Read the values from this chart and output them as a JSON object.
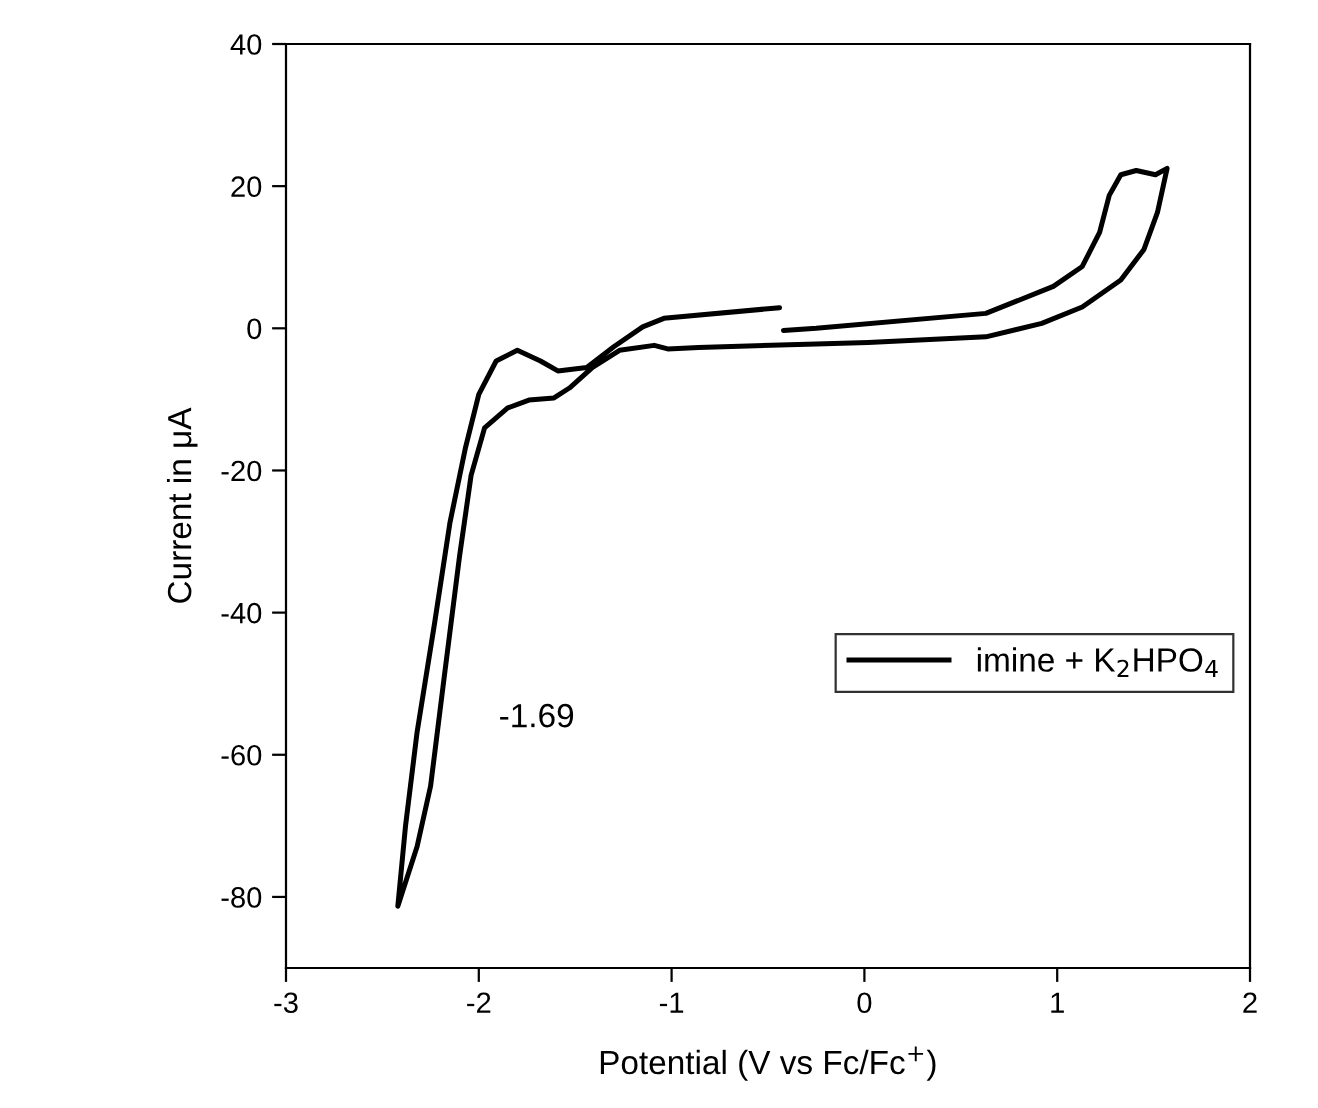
{
  "chart_data": {
    "type": "line",
    "xlabel": "Potential (V vs Fc/Fc$^{+}$)",
    "ylabel": "Current in μA",
    "annotations": [
      "-1.69"
    ],
    "series": [
      {
        "name": "imine + K$_{2}$HPO$_{4}$",
        "color": "#000000",
        "x": [
          -0.42,
          -0.25,
          0.63,
          0.98,
          1.13,
          1.22,
          1.27,
          1.33,
          1.41,
          1.51,
          1.57,
          1.52,
          1.45,
          1.33,
          1.13,
          0.92,
          0.63,
          0.02,
          -0.25,
          -0.86,
          -1.02,
          -1.09,
          -1.27,
          -1.41,
          -1.53,
          -1.61,
          -1.74,
          -1.85,
          -1.97,
          -2.04,
          -2.1,
          -2.18,
          -2.25,
          -2.32,
          -2.42,
          -2.38,
          -2.32,
          -2.23,
          -2.15,
          -2.07,
          -2.0,
          -1.91,
          -1.8,
          -1.68,
          -1.59,
          -1.44,
          -1.3,
          -1.15,
          -1.04,
          -0.44
        ],
        "values": [
          -0.3,
          0,
          2.1,
          5.9,
          8.7,
          13.5,
          18.7,
          21.6,
          22.2,
          21.6,
          22.5,
          16.3,
          11.1,
          6.8,
          3.0,
          0.7,
          -1.2,
          -2.0,
          -2.2,
          -2.7,
          -2.9,
          -2.4,
          -3.1,
          -5.5,
          -8.4,
          -9.8,
          -10.1,
          -11.2,
          -14.0,
          -20.7,
          -32.1,
          -49.2,
          -64.4,
          -72.9,
          -81.3,
          -70,
          -56.8,
          -41.6,
          -27.4,
          -16.9,
          -9.3,
          -4.6,
          -3.1,
          -4.6,
          -6.0,
          -5.5,
          -2.6,
          0.2,
          1.4,
          2.9
        ]
      }
    ],
    "xlim": [
      -3,
      2
    ],
    "xticks": [
      -3,
      -2,
      -1,
      0,
      1,
      2
    ],
    "ylim": [
      -90,
      40
    ],
    "yticks": [
      -80,
      -60,
      -40,
      -20,
      0,
      20,
      40
    ],
    "grid": false,
    "legend": "right",
    "marker": "none",
    "line_style": "solid"
  }
}
